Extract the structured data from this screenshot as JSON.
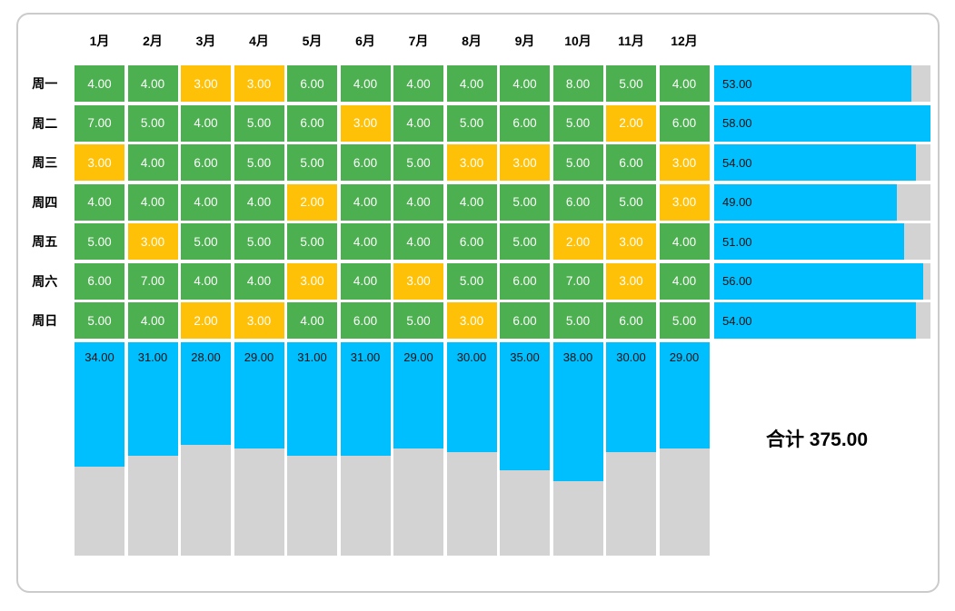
{
  "card": {
    "grand_total_display": "合计 375.00"
  },
  "chart_data": {
    "type": "heatmap",
    "title": "",
    "columns": [
      "1月",
      "2月",
      "3月",
      "4月",
      "5月",
      "6月",
      "7月",
      "8月",
      "9月",
      "10月",
      "11月",
      "12月"
    ],
    "rows": [
      "周一",
      "周二",
      "周三",
      "周四",
      "周五",
      "周六",
      "周日"
    ],
    "matrix": [
      [
        4,
        4,
        3,
        3,
        6,
        4,
        4,
        4,
        4,
        8,
        5,
        4
      ],
      [
        7,
        5,
        4,
        5,
        6,
        3,
        4,
        5,
        6,
        5,
        2,
        6
      ],
      [
        3,
        4,
        6,
        5,
        5,
        6,
        5,
        3,
        3,
        5,
        6,
        3
      ],
      [
        4,
        4,
        4,
        4,
        2,
        4,
        4,
        4,
        5,
        6,
        5,
        3
      ],
      [
        5,
        3,
        5,
        5,
        5,
        4,
        4,
        6,
        5,
        2,
        3,
        4
      ],
      [
        6,
        7,
        4,
        4,
        3,
        4,
        3,
        5,
        6,
        7,
        3,
        4
      ],
      [
        5,
        4,
        2,
        3,
        4,
        6,
        5,
        3,
        6,
        5,
        6,
        5
      ]
    ],
    "row_totals": [
      53,
      58,
      54,
      49,
      51,
      56,
      54
    ],
    "col_totals": [
      34,
      31,
      28,
      29,
      31,
      31,
      29,
      30,
      35,
      38,
      30,
      29
    ],
    "grand_total": 375,
    "grand_total_label": "合计",
    "value_format": "0.00",
    "scale_max": 58,
    "low_value_threshold": 3,
    "legend": "none",
    "colors": {
      "cell_normal": "#4CAF50",
      "cell_low": "#FFC107",
      "bar_fill": "#00BFFF",
      "bar_track": "#D3D3D3",
      "cell_text": "#FFFFFF",
      "bar_text": "#111111"
    }
  }
}
